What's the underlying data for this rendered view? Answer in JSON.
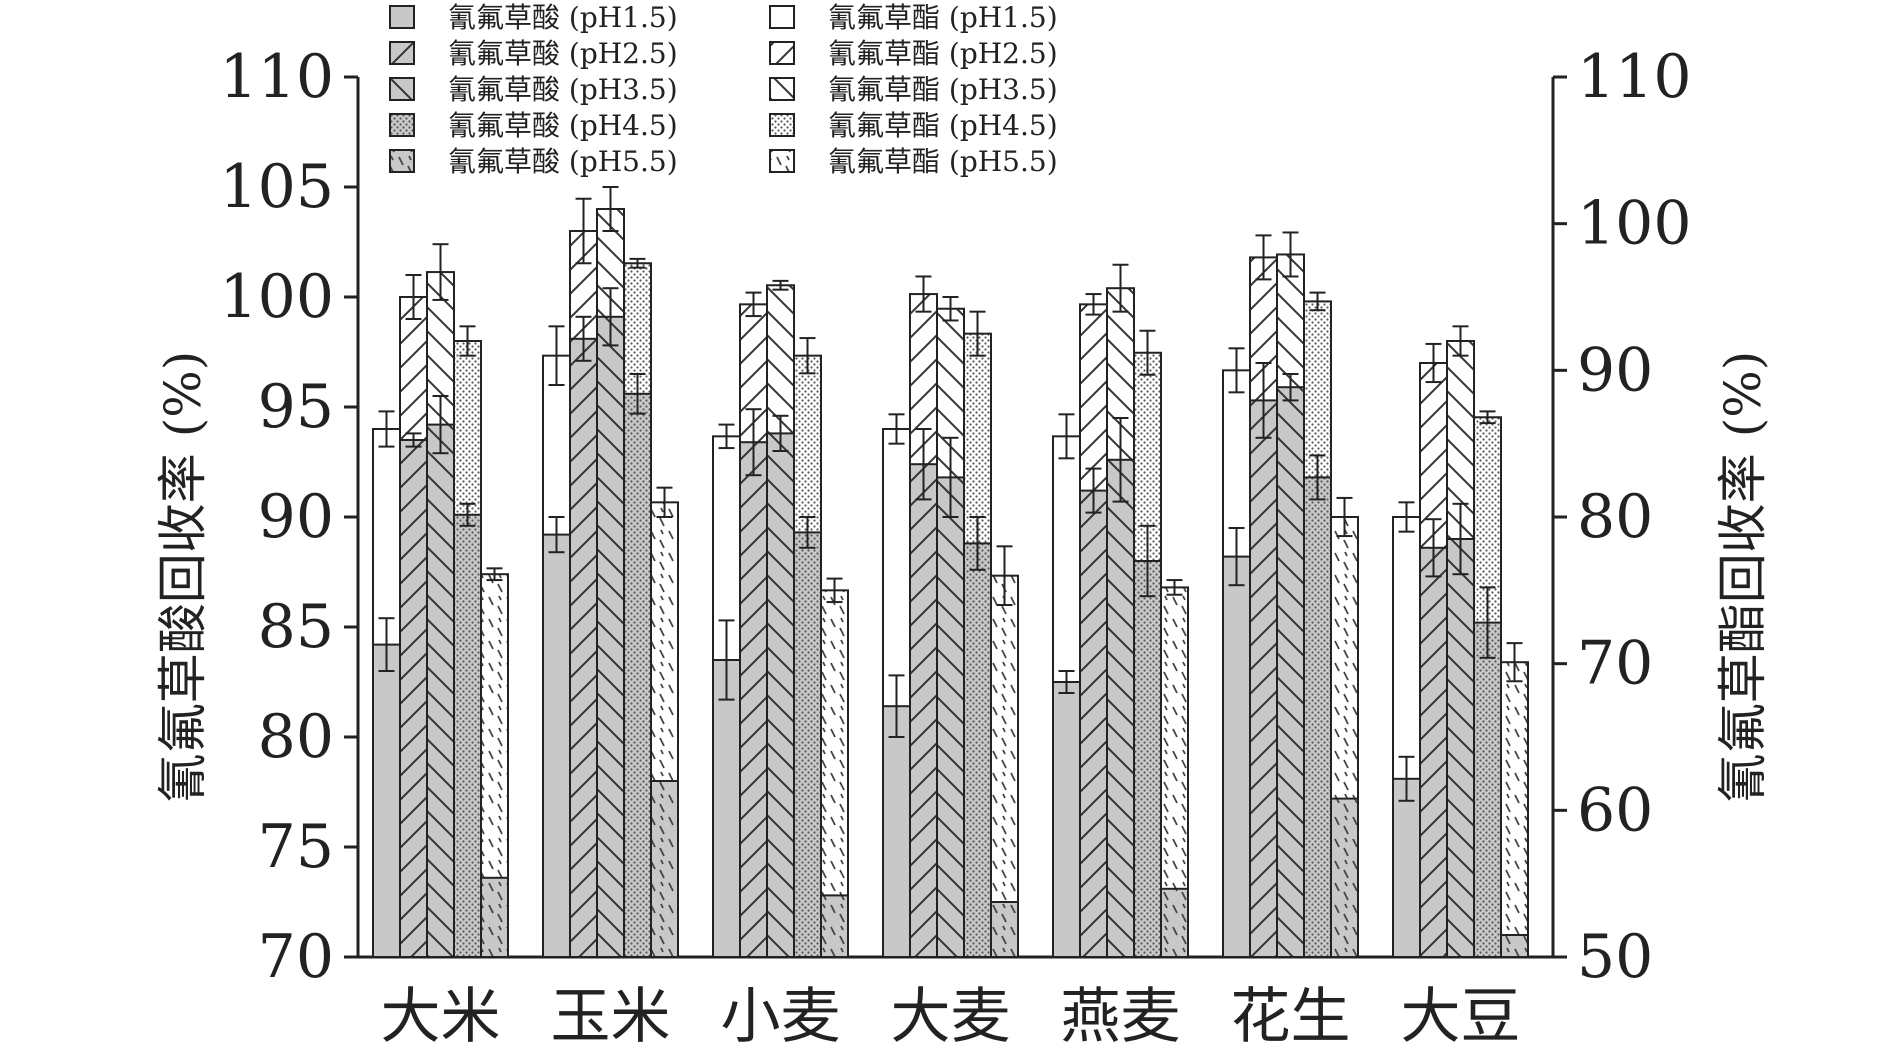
{
  "chart_data": {
    "type": "bar",
    "categories": [
      "大米",
      "玉米",
      "小麦",
      "大麦",
      "燕麦",
      "花生",
      "大豆"
    ],
    "ylabel_left": "氰氟草酸回收率 (%)",
    "ylabel_right": "氰氟草酯回收率 (%)",
    "ylim_left": [
      70,
      110
    ],
    "ylim_right": [
      50,
      110
    ],
    "yticks_left": [
      "70",
      "75",
      "80",
      "85",
      "90",
      "95",
      "100",
      "105",
      "110"
    ],
    "yticks_right": [
      "50",
      "60",
      "70",
      "80",
      "90",
      "100",
      "110"
    ],
    "grid": false,
    "legend_position": "top",
    "acid_color": "#c8c8c8",
    "ester_color": "#ffffff",
    "series": [
      {
        "name": "氰氟草酸 (pH1.5)",
        "axis": "left",
        "pattern": "solid",
        "values": [
          84.2,
          89.2,
          83.5,
          81.4,
          82.5,
          88.2,
          78.1
        ],
        "errors": [
          1.2,
          0.8,
          1.8,
          1.4,
          0.5,
          1.3,
          1.0
        ]
      },
      {
        "name": "氰氟草酸 (pH2.5)",
        "axis": "left",
        "pattern": "diag",
        "values": [
          93.5,
          98.1,
          93.4,
          92.4,
          91.2,
          95.3,
          88.6
        ],
        "errors": [
          0.3,
          1.0,
          1.5,
          1.6,
          1.0,
          1.7,
          1.3
        ]
      },
      {
        "name": "氰氟草酸 (pH3.5)",
        "axis": "left",
        "pattern": "backdiag",
        "values": [
          94.2,
          99.1,
          93.8,
          91.8,
          92.6,
          95.9,
          89.0
        ],
        "errors": [
          1.3,
          1.3,
          0.8,
          1.8,
          1.9,
          0.6,
          1.6
        ]
      },
      {
        "name": "氰氟草酸 (pH4.5)",
        "axis": "left",
        "pattern": "dots",
        "values": [
          90.1,
          95.6,
          89.3,
          88.8,
          88.0,
          91.8,
          85.2
        ],
        "errors": [
          0.5,
          0.9,
          0.7,
          1.2,
          1.6,
          1.0,
          1.6
        ]
      },
      {
        "name": "氰氟草酸 (pH5.5)",
        "axis": "left",
        "pattern": "dash",
        "values": [
          73.6,
          78.0,
          72.8,
          72.5,
          73.1,
          77.2,
          71.0
        ],
        "errors": [
          0,
          0,
          0,
          0,
          0,
          0,
          0
        ]
      },
      {
        "name": "氰氟草酯 (pH1.5)",
        "axis": "right",
        "pattern": "solid",
        "values": [
          86.0,
          91.0,
          85.5,
          86.0,
          85.5,
          90.0,
          80.0
        ],
        "errors": [
          1.2,
          2.0,
          0.8,
          1.0,
          1.5,
          1.5,
          1.0
        ]
      },
      {
        "name": "氰氟草酯 (pH2.5)",
        "axis": "right",
        "pattern": "diag",
        "values": [
          95.0,
          99.5,
          94.5,
          95.2,
          94.5,
          97.7,
          90.5
        ],
        "errors": [
          1.5,
          2.2,
          0.8,
          1.2,
          0.7,
          1.5,
          1.3
        ]
      },
      {
        "name": "氰氟草酯 (pH3.5)",
        "axis": "right",
        "pattern": "backdiag",
        "values": [
          96.7,
          101.0,
          95.8,
          94.2,
          95.6,
          97.9,
          92.0
        ],
        "errors": [
          1.9,
          1.5,
          0.3,
          0.8,
          1.6,
          1.5,
          1.0
        ]
      },
      {
        "name": "氰氟草酯 (pH4.5)",
        "axis": "right",
        "pattern": "dots",
        "values": [
          92.0,
          97.3,
          91.0,
          92.5,
          91.2,
          94.7,
          86.8
        ],
        "errors": [
          1.0,
          0.3,
          1.2,
          1.5,
          1.5,
          0.6,
          0.4
        ]
      },
      {
        "name": "氰氟草酯 (pH5.5)",
        "axis": "right",
        "pattern": "dash",
        "values": [
          76.1,
          81.0,
          75.0,
          76.0,
          75.2,
          80.0,
          70.1
        ],
        "errors": [
          0.4,
          1.0,
          0.8,
          2.0,
          0.5,
          1.3,
          1.3
        ]
      }
    ]
  }
}
